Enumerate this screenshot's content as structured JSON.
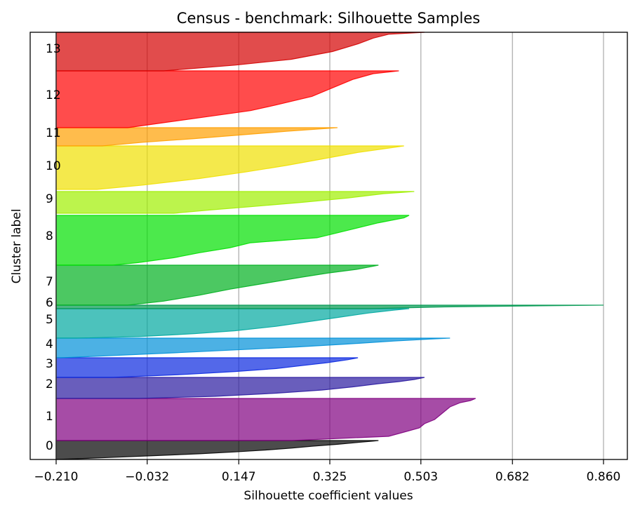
{
  "chart_data": {
    "type": "area",
    "title": "Census - benchmark: Silhouette Samples",
    "xlabel": "Silhouette coefficient values",
    "ylabel": "Cluster label",
    "xlim": [
      -0.21,
      0.86
    ],
    "xticks": [
      -0.21,
      -0.032,
      0.147,
      0.325,
      0.503,
      0.682,
      0.86
    ],
    "xtick_labels": [
      "−0.210",
      "−0.032",
      "0.147",
      "0.325",
      "0.503",
      "0.682",
      "0.860"
    ],
    "grid": "vertical",
    "series": [
      {
        "label": "0",
        "color": "#000000",
        "min": -0.21,
        "max": 0.42,
        "profile": [
          [
            0,
            0.42
          ],
          [
            0.03,
            0.41
          ],
          [
            0.1,
            0.38
          ],
          [
            0.2,
            0.34
          ],
          [
            0.3,
            0.29
          ],
          [
            0.4,
            0.25
          ],
          [
            0.5,
            0.2
          ],
          [
            0.6,
            0.14
          ],
          [
            0.7,
            0.07
          ],
          [
            0.8,
            -0.02
          ],
          [
            0.9,
            -0.11
          ],
          [
            1,
            -0.21
          ]
        ]
      },
      {
        "label": "1",
        "color": "#800080",
        "min": -0.21,
        "max": 0.61,
        "profile": [
          [
            0,
            0.61
          ],
          [
            0.05,
            0.6
          ],
          [
            0.1,
            0.58
          ],
          [
            0.2,
            0.56
          ],
          [
            0.3,
            0.55
          ],
          [
            0.4,
            0.54
          ],
          [
            0.5,
            0.53
          ],
          [
            0.6,
            0.51
          ],
          [
            0.7,
            0.5
          ],
          [
            0.8,
            0.47
          ],
          [
            0.9,
            0.44
          ],
          [
            1,
            0.25
          ]
        ]
      },
      {
        "label": "2",
        "color": "#2a1aa0",
        "min": -0.21,
        "max": 0.51,
        "profile": [
          [
            0,
            0.51
          ],
          [
            0.1,
            0.49
          ],
          [
            0.2,
            0.46
          ],
          [
            0.3,
            0.42
          ],
          [
            0.45,
            0.37
          ],
          [
            0.6,
            0.31
          ],
          [
            0.75,
            0.22
          ],
          [
            0.9,
            0.1
          ],
          [
            1,
            -0.05
          ]
        ]
      },
      {
        "label": "3",
        "color": "#0a28e0",
        "min": -0.21,
        "max": 0.38,
        "profile": [
          [
            0,
            0.38
          ],
          [
            0.1,
            0.36
          ],
          [
            0.25,
            0.32
          ],
          [
            0.4,
            0.27
          ],
          [
            0.55,
            0.22
          ],
          [
            0.7,
            0.14
          ],
          [
            0.85,
            0.04
          ],
          [
            1,
            -0.1
          ]
        ]
      },
      {
        "label": "4",
        "color": "#0090d8",
        "min": -0.21,
        "max": 0.56,
        "profile": [
          [
            0,
            0.56
          ],
          [
            0.05,
            0.52
          ],
          [
            0.15,
            0.45
          ],
          [
            0.3,
            0.36
          ],
          [
            0.45,
            0.26
          ],
          [
            0.6,
            0.14
          ],
          [
            0.75,
            0.02
          ],
          [
            0.9,
            -0.11
          ],
          [
            1,
            -0.2
          ]
        ]
      },
      {
        "label": "5",
        "color": "#00a8a0",
        "min": -0.21,
        "max": 0.48,
        "profile": [
          [
            0,
            0.48
          ],
          [
            0.05,
            0.45
          ],
          [
            0.15,
            0.4
          ],
          [
            0.3,
            0.34
          ],
          [
            0.45,
            0.28
          ],
          [
            0.6,
            0.22
          ],
          [
            0.75,
            0.14
          ],
          [
            0.85,
            0.06
          ],
          [
            0.95,
            -0.05
          ],
          [
            1,
            -0.17
          ]
        ]
      },
      {
        "label": "6",
        "color": "#009850",
        "min": -0.21,
        "max": 0.86,
        "profile": [
          [
            0,
            0.86
          ],
          [
            0.5,
            0.55
          ],
          [
            1,
            0.4
          ]
        ]
      },
      {
        "label": "7",
        "color": "#00b020",
        "min": -0.21,
        "max": 0.42,
        "profile": [
          [
            0,
            0.42
          ],
          [
            0.1,
            0.38
          ],
          [
            0.2,
            0.32
          ],
          [
            0.3,
            0.27
          ],
          [
            0.45,
            0.2
          ],
          [
            0.6,
            0.13
          ],
          [
            0.75,
            0.07
          ],
          [
            0.9,
            0.0
          ],
          [
            1,
            -0.07
          ]
        ]
      },
      {
        "label": "8",
        "color": "#00e000",
        "min": -0.21,
        "max": 0.48,
        "profile": [
          [
            0,
            0.48
          ],
          [
            0.05,
            0.47
          ],
          [
            0.15,
            0.42
          ],
          [
            0.3,
            0.36
          ],
          [
            0.45,
            0.3
          ],
          [
            0.55,
            0.17
          ],
          [
            0.65,
            0.13
          ],
          [
            0.75,
            0.07
          ],
          [
            0.85,
            0.02
          ],
          [
            0.95,
            -0.05
          ],
          [
            1,
            -0.1
          ]
        ]
      },
      {
        "label": "9",
        "color": "#a0f000",
        "min": -0.21,
        "max": 0.49,
        "profile": [
          [
            0,
            0.49
          ],
          [
            0.1,
            0.43
          ],
          [
            0.3,
            0.36
          ],
          [
            0.5,
            0.27
          ],
          [
            0.7,
            0.17
          ],
          [
            0.85,
            0.09
          ],
          [
            1,
            0.02
          ]
        ]
      },
      {
        "label": "10",
        "color": "#f0e000",
        "min": -0.21,
        "max": 0.47,
        "profile": [
          [
            0,
            0.47
          ],
          [
            0.05,
            0.44
          ],
          [
            0.15,
            0.38
          ],
          [
            0.3,
            0.31
          ],
          [
            0.45,
            0.24
          ],
          [
            0.6,
            0.16
          ],
          [
            0.75,
            0.07
          ],
          [
            0.9,
            -0.04
          ],
          [
            1,
            -0.13
          ]
        ]
      },
      {
        "label": "11",
        "color": "#ffa000",
        "min": -0.21,
        "max": 0.34,
        "profile": [
          [
            0,
            0.34
          ],
          [
            0.2,
            0.24
          ],
          [
            0.4,
            0.15
          ],
          [
            0.6,
            0.06
          ],
          [
            0.8,
            -0.04
          ],
          [
            1,
            -0.12
          ]
        ]
      },
      {
        "label": "12",
        "color": "#ff0000",
        "min": -0.21,
        "max": 0.46,
        "profile": [
          [
            0,
            0.46
          ],
          [
            0.05,
            0.41
          ],
          [
            0.15,
            0.37
          ],
          [
            0.3,
            0.33
          ],
          [
            0.45,
            0.29
          ],
          [
            0.6,
            0.22
          ],
          [
            0.7,
            0.17
          ],
          [
            0.8,
            0.09
          ],
          [
            0.9,
            0.01
          ],
          [
            1,
            -0.07
          ]
        ]
      },
      {
        "label": "13",
        "color": "#d40000",
        "min": -0.21,
        "max": 0.51,
        "profile": [
          [
            0,
            0.51
          ],
          [
            0.05,
            0.44
          ],
          [
            0.15,
            0.41
          ],
          [
            0.3,
            0.38
          ],
          [
            0.5,
            0.33
          ],
          [
            0.7,
            0.25
          ],
          [
            0.85,
            0.14
          ],
          [
            1,
            0.0
          ]
        ]
      }
    ]
  }
}
